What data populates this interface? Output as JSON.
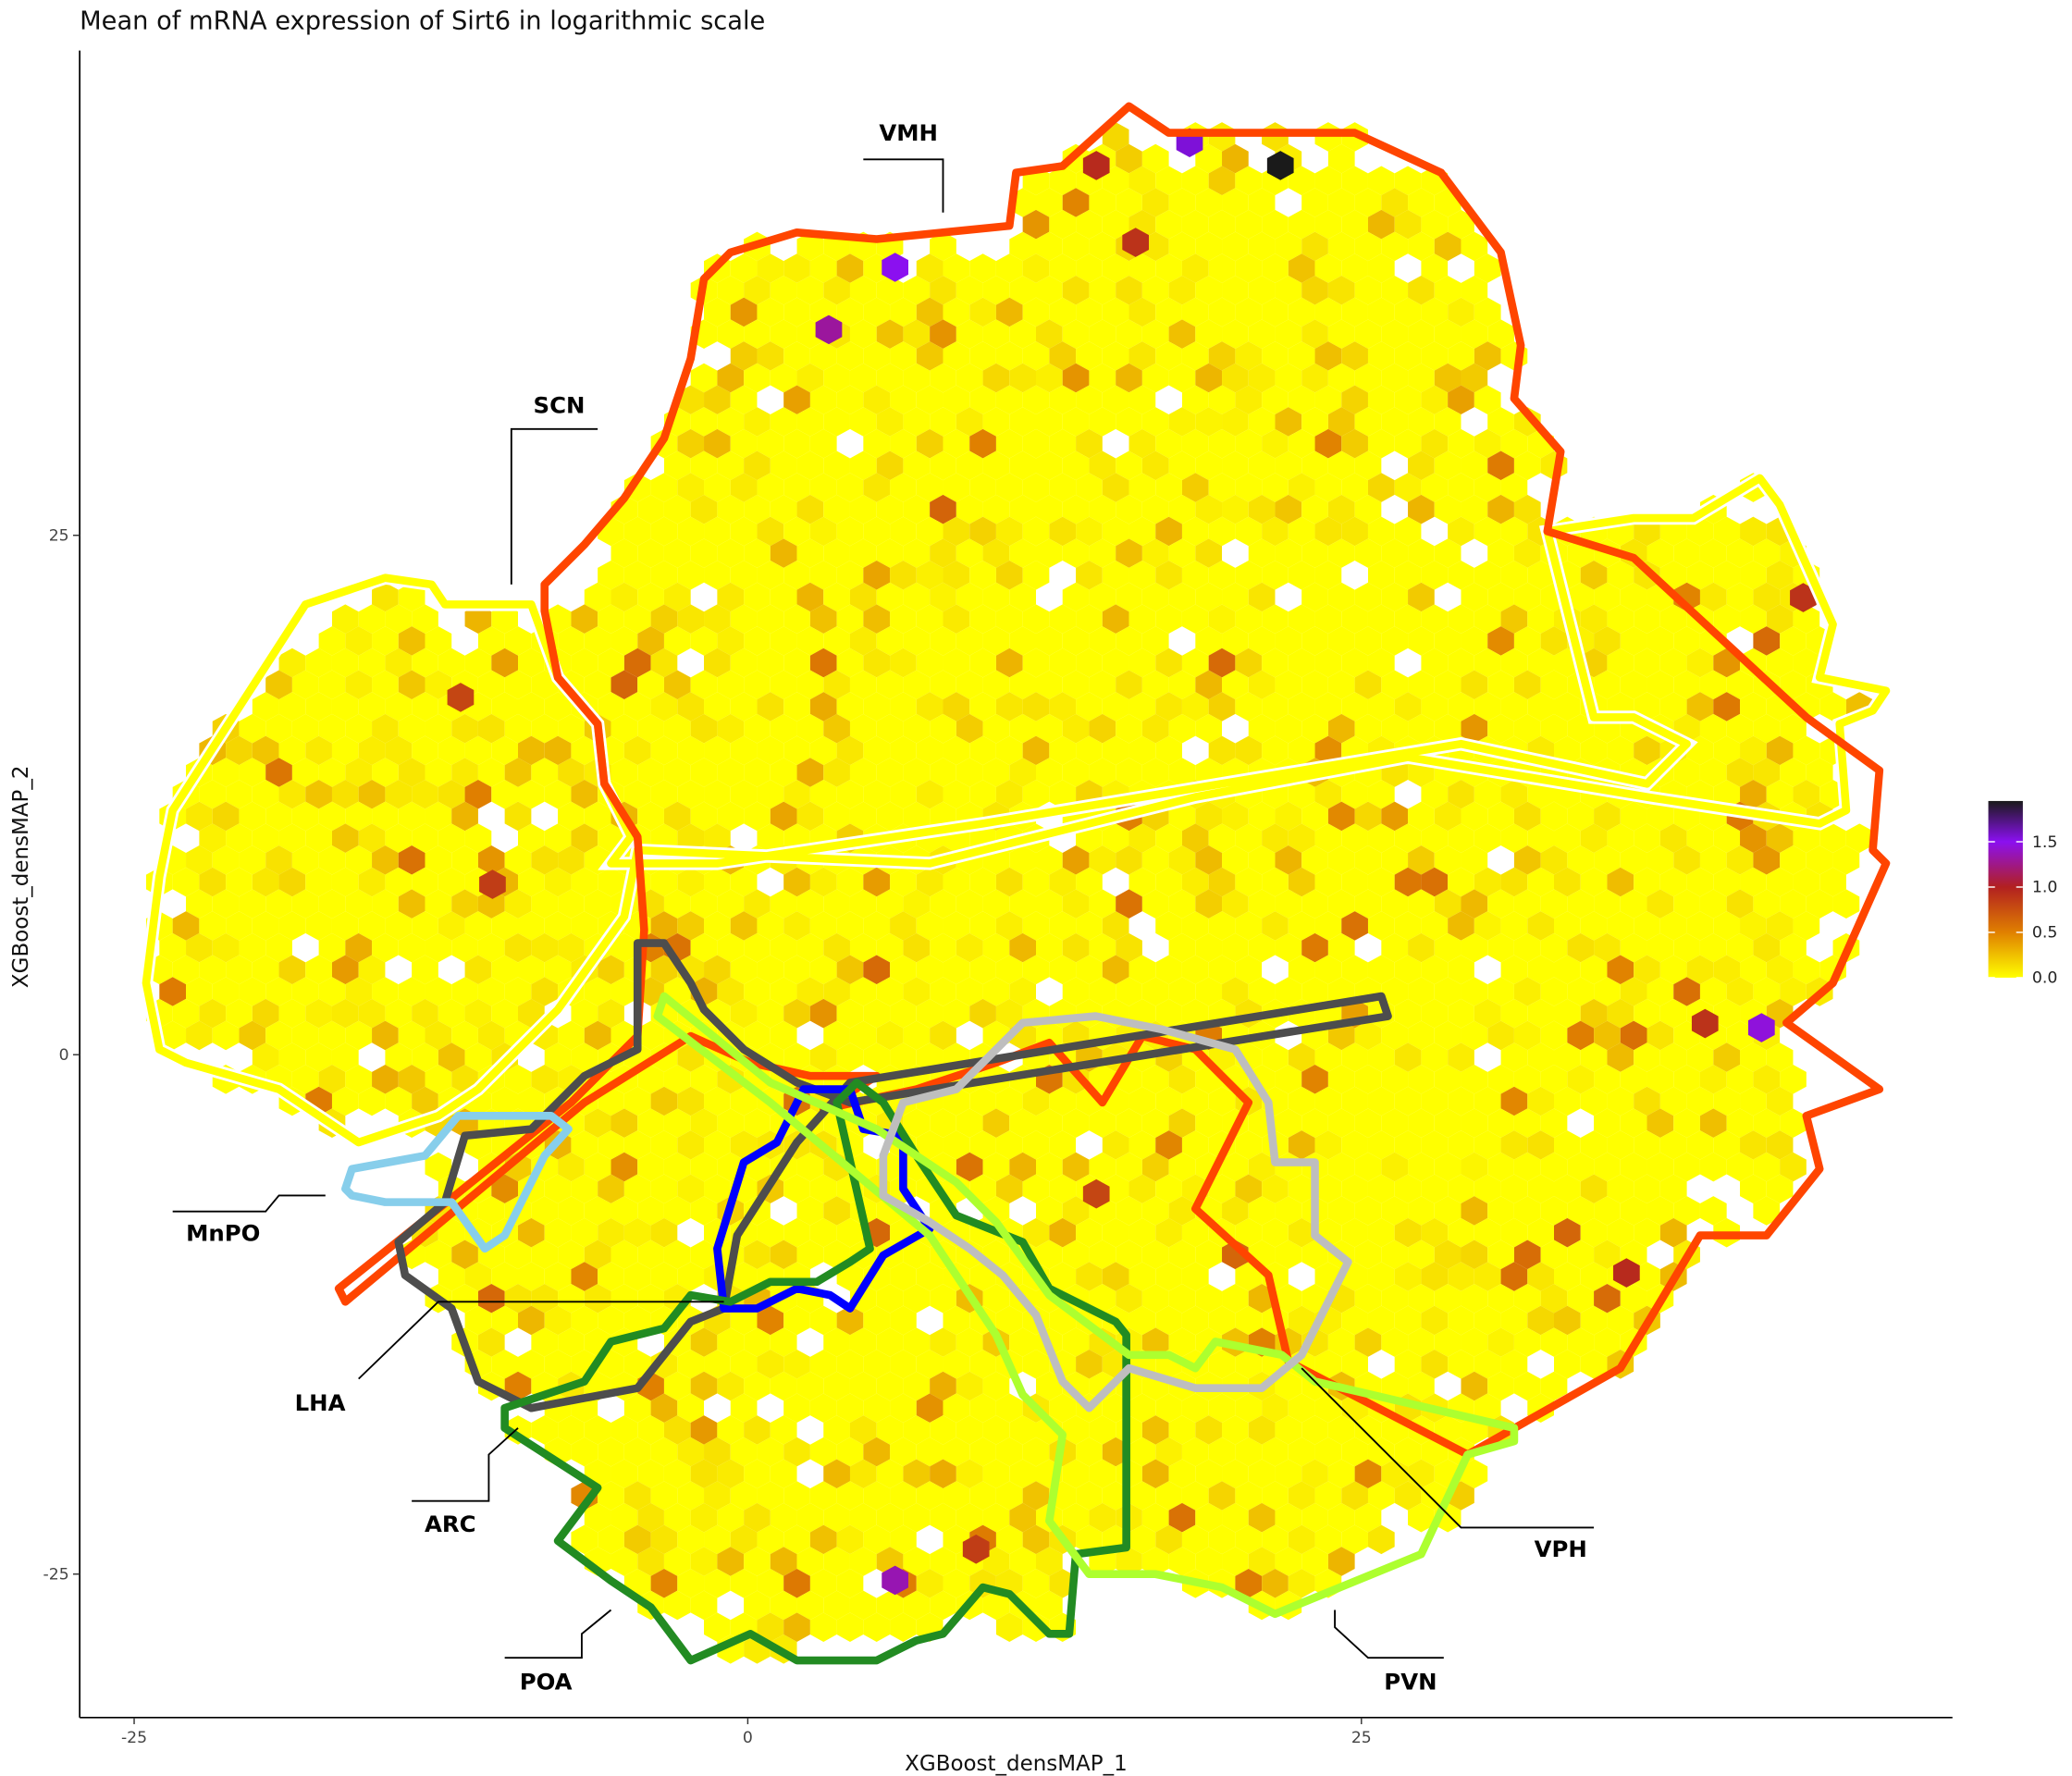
{
  "chart_data": {
    "type": "heatmap",
    "subtype": "hexbin",
    "title": "Mean of mRNA expression of Sirt6 in logarithmic scale",
    "xlabel": "XGBoost_densMAP_1",
    "ylabel": "XGBoost_densMAP_2",
    "x_ticks": [
      "-25",
      "0",
      "25"
    ],
    "x_tick_values": [
      -25,
      0,
      25
    ],
    "y_ticks": [
      "25",
      "0",
      "-25"
    ],
    "y_tick_values": [
      25,
      0,
      -25
    ],
    "xlim": [
      -27,
      49
    ],
    "ylim": [
      -32,
      49
    ],
    "grid": false,
    "legend_position": "right",
    "colorbar": {
      "ticks": [
        "0.0",
        "0.5",
        "1.0",
        "1.5"
      ],
      "tick_values": [
        0,
        0.5,
        1.0,
        1.5
      ],
      "range": [
        0,
        1.95
      ],
      "colors": [
        "#FFFF00",
        "#E08000",
        "#B22020",
        "#8B10F0",
        "#1A1A1A"
      ]
    },
    "highlight_bins": [
      {
        "x": 21.7,
        "y": 42.8,
        "value": 1.95
      },
      {
        "x": 18.0,
        "y": 43.9,
        "value": 1.55
      },
      {
        "x": 6.0,
        "y": 37.9,
        "value": 1.5
      },
      {
        "x": 3.3,
        "y": 34.9,
        "value": 1.3
      },
      {
        "x": 41.3,
        "y": 1.3,
        "value": 1.45
      },
      {
        "x": 6.0,
        "y": -25.3,
        "value": 1.35
      },
      {
        "x": 14.2,
        "y": 42.8,
        "value": 0.95
      },
      {
        "x": 15.8,
        "y": 39.1,
        "value": 0.9
      },
      {
        "x": 43.0,
        "y": 22.0,
        "value": 0.9
      },
      {
        "x": 35.8,
        "y": -10.5,
        "value": 0.95
      },
      {
        "x": 39.0,
        "y": 1.5,
        "value": 0.9
      },
      {
        "x": -10.4,
        "y": 8.2,
        "value": 0.85
      },
      {
        "x": -11.7,
        "y": 17.2,
        "value": 0.8
      },
      {
        "x": 9.3,
        "y": -23.8,
        "value": 0.85
      },
      {
        "x": 14.2,
        "y": -6.7,
        "value": 0.8
      }
    ],
    "regions": [
      {
        "name": "VMH",
        "color": "#FF4500"
      },
      {
        "name": "SCN",
        "color": "#FFFF00"
      },
      {
        "name": "MnPO",
        "color": "#87CEEB"
      },
      {
        "name": "LHA",
        "color": "#4D4D4D"
      },
      {
        "name": "ARC",
        "color": "#0000FF"
      },
      {
        "name": "POA",
        "color": "#228B22"
      },
      {
        "name": "VPH",
        "color": "#BEBEBE"
      },
      {
        "name": "PVN",
        "color": "#ADFF2F"
      }
    ]
  }
}
